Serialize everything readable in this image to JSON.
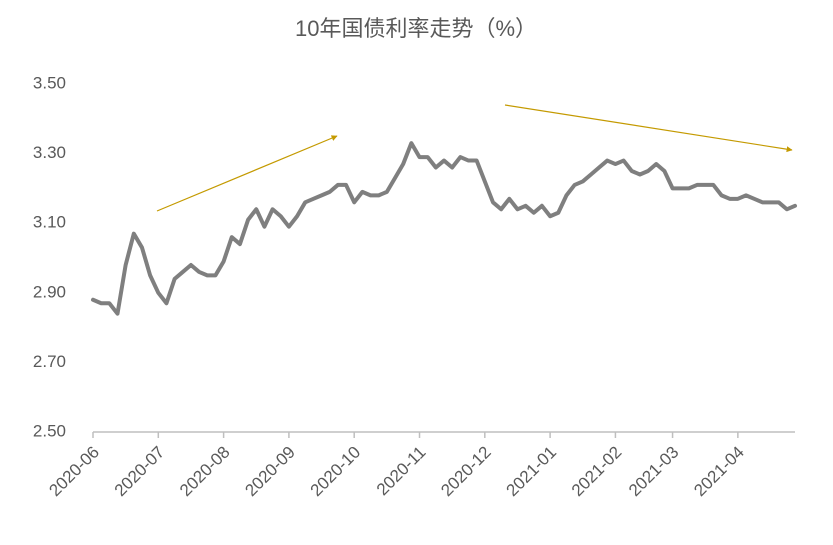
{
  "chart_data": {
    "type": "line",
    "title": "10年国债利率走势（%）",
    "categories": [
      "2020-06",
      null,
      null,
      null,
      null,
      null,
      null,
      null,
      "2020-07",
      null,
      null,
      null,
      null,
      null,
      null,
      null,
      "2020-08",
      null,
      null,
      null,
      null,
      null,
      null,
      null,
      "2020-09",
      null,
      null,
      null,
      null,
      null,
      null,
      null,
      "2020-10",
      null,
      null,
      null,
      null,
      null,
      null,
      null,
      "2020-11",
      null,
      null,
      null,
      null,
      null,
      null,
      null,
      "2020-12",
      null,
      null,
      null,
      null,
      null,
      null,
      null,
      "2021-01",
      null,
      null,
      null,
      null,
      null,
      null,
      null,
      "2021-02",
      null,
      null,
      null,
      null,
      null,
      null,
      "2021-03",
      null,
      null,
      null,
      null,
      null,
      null,
      null,
      "2021-04",
      null,
      null,
      null,
      null,
      null,
      null,
      null
    ],
    "values": [
      2.88,
      2.87,
      2.87,
      2.84,
      2.98,
      3.07,
      3.03,
      2.95,
      2.9,
      2.87,
      2.94,
      2.96,
      2.98,
      2.96,
      2.95,
      2.95,
      2.99,
      3.06,
      3.04,
      3.11,
      3.14,
      3.09,
      3.14,
      3.12,
      3.09,
      3.12,
      3.16,
      3.17,
      3.18,
      3.19,
      3.21,
      3.21,
      3.16,
      3.19,
      3.18,
      3.18,
      3.19,
      3.23,
      3.27,
      3.33,
      3.29,
      3.29,
      3.26,
      3.28,
      3.26,
      3.29,
      3.28,
      3.28,
      3.22,
      3.16,
      3.14,
      3.17,
      3.14,
      3.15,
      3.13,
      3.15,
      3.12,
      3.13,
      3.18,
      3.21,
      3.22,
      3.24,
      3.26,
      3.28,
      3.27,
      3.28,
      3.25,
      3.24,
      3.25,
      3.27,
      3.25,
      3.2,
      3.2,
      3.2,
      3.21,
      3.21,
      3.21,
      3.18,
      3.17,
      3.17,
      3.18,
      3.17,
      3.16,
      3.16,
      3.16,
      3.14,
      3.15
    ],
    "color": "#7f7f7f",
    "ylim": [
      2.5,
      3.5
    ],
    "yticks": [
      {
        "value": 2.5,
        "label": "2.50"
      },
      {
        "value": 2.7,
        "label": "2.70"
      },
      {
        "value": 2.9,
        "label": "2.90"
      },
      {
        "value": 3.1,
        "label": "3.10"
      },
      {
        "value": 3.3,
        "label": "3.30"
      },
      {
        "value": 3.5,
        "label": "3.50"
      }
    ],
    "grid": false
  }
}
